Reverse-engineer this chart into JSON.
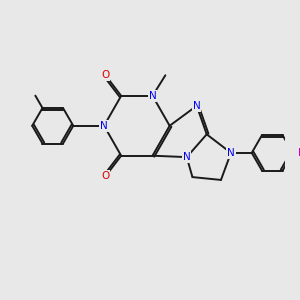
{
  "bg_color": "#e8e8e8",
  "bond_color": "#1a1a1a",
  "n_color": "#0000ee",
  "o_color": "#dd0000",
  "f_color": "#cc00cc",
  "line_width": 1.4,
  "figsize": [
    3.0,
    3.0
  ],
  "dpi": 100,
  "xlim": [
    0,
    10
  ],
  "ylim": [
    0,
    10
  ]
}
